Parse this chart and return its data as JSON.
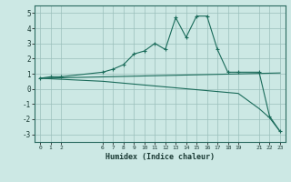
{
  "xlabel": "Humidex (Indice chaleur)",
  "bg_color": "#cce8e4",
  "grid_color": "#b0d0cc",
  "line_color": "#1a6b5a",
  "xlim": [
    -0.5,
    23.5
  ],
  "ylim": [
    -3.5,
    5.5
  ],
  "xticks": [
    0,
    1,
    2,
    6,
    7,
    8,
    9,
    10,
    11,
    12,
    13,
    14,
    15,
    16,
    17,
    18,
    19,
    21,
    22,
    23
  ],
  "yticks": [
    -3,
    -2,
    -1,
    0,
    1,
    2,
    3,
    4,
    5
  ],
  "line1_x": [
    0,
    1,
    2,
    6,
    7,
    8,
    9,
    10,
    11,
    12,
    13,
    14,
    15,
    16,
    17,
    18,
    19,
    21,
    22,
    23
  ],
  "line1_y": [
    0.7,
    0.8,
    0.8,
    1.1,
    1.3,
    1.6,
    2.3,
    2.5,
    3.0,
    2.6,
    4.7,
    3.4,
    4.8,
    4.8,
    2.6,
    1.1,
    1.1,
    1.1,
    -1.8,
    -2.8
  ],
  "line2_x": [
    0,
    23
  ],
  "line2_y": [
    0.7,
    1.05
  ],
  "line3_x": [
    0,
    6,
    19,
    21,
    22,
    23
  ],
  "line3_y": [
    0.7,
    0.5,
    -0.3,
    -1.3,
    -1.9,
    -2.8
  ]
}
